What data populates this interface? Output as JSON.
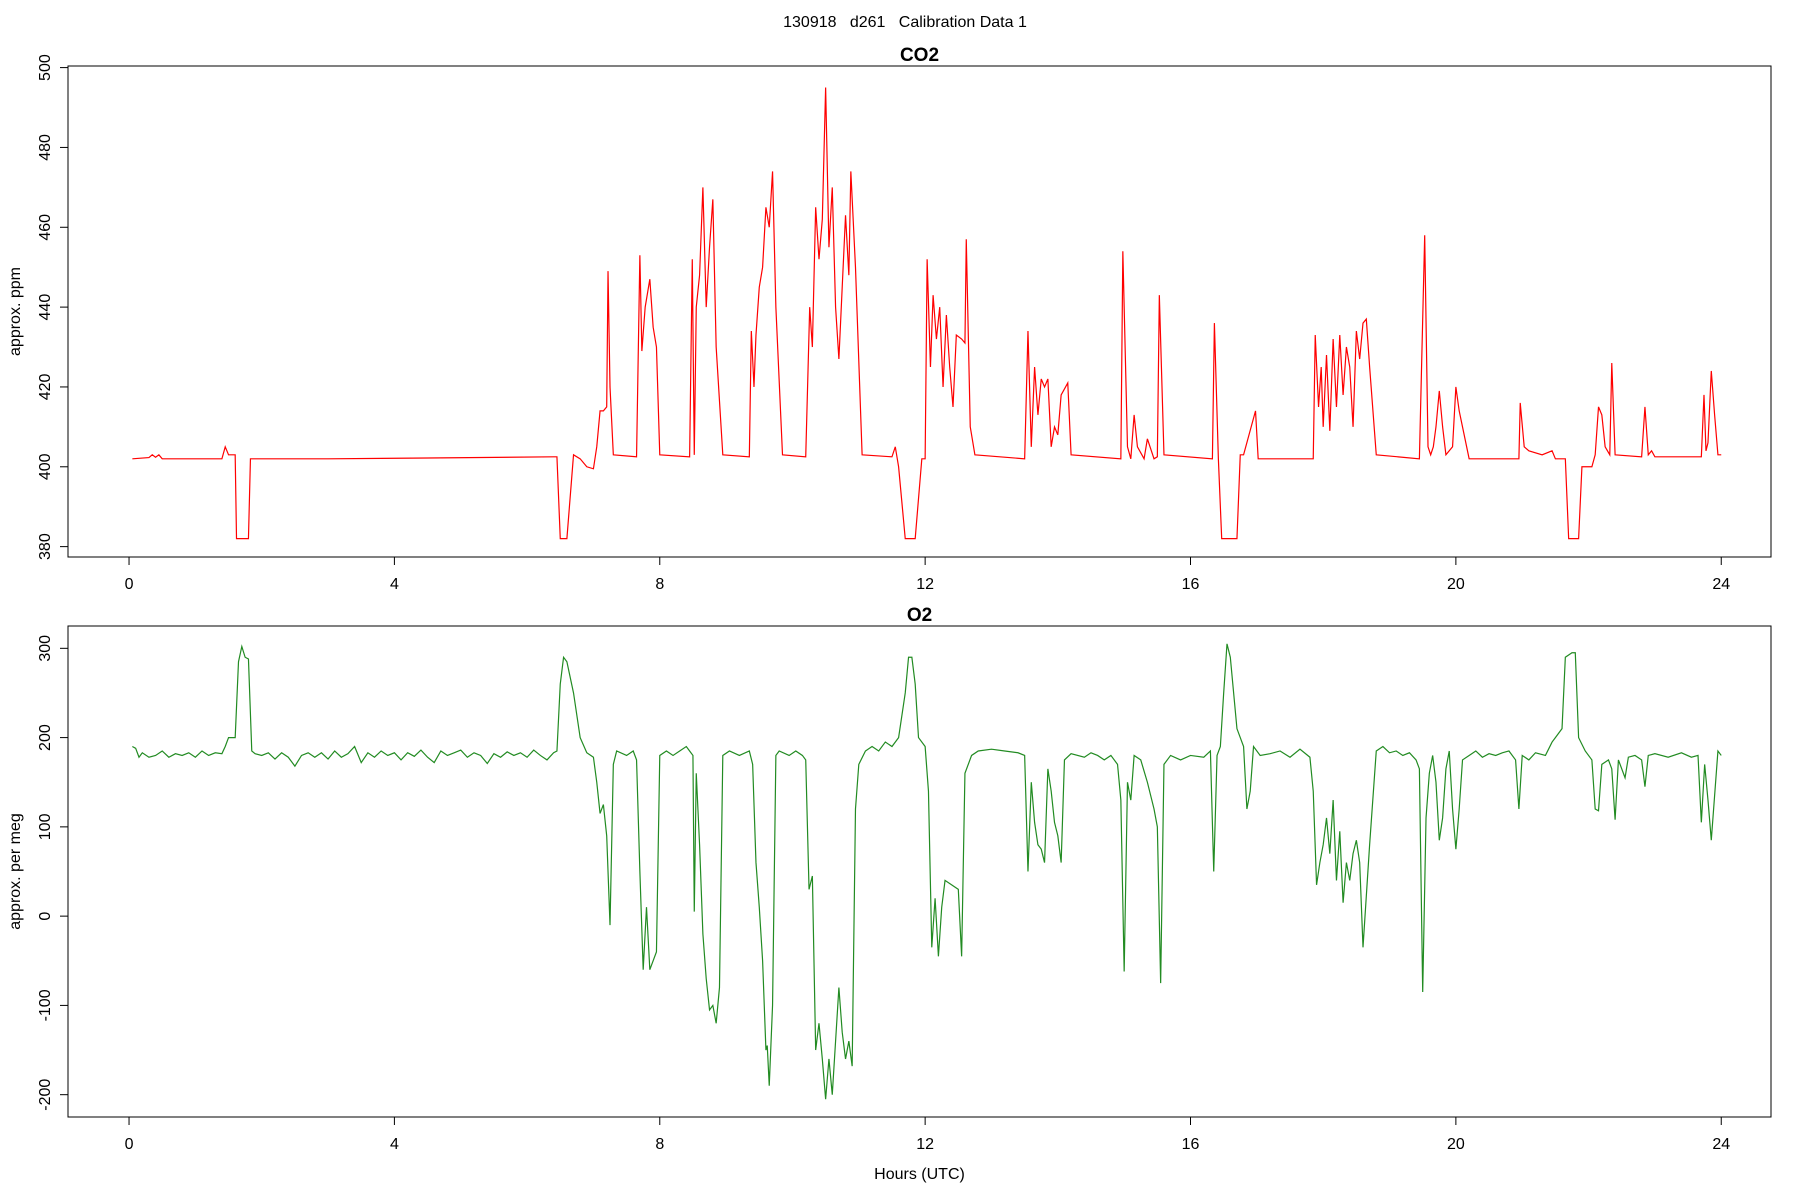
{
  "title": "130918   d261   Calibration Data 1",
  "chart_data": [
    {
      "type": "line",
      "title": "CO2",
      "y_label": "approx. ppm",
      "x": [
        0.05,
        0.3,
        0.35,
        0.4,
        0.45,
        0.5,
        1.4,
        1.45,
        1.5,
        1.6,
        1.62,
        1.8,
        1.83,
        3.0,
        4.5,
        6.4,
        6.45,
        6.5,
        6.6,
        6.7,
        6.8,
        6.9,
        7.0,
        7.05,
        7.1,
        7.15,
        7.2,
        7.22,
        7.25,
        7.3,
        7.65,
        7.7,
        7.73,
        7.78,
        7.85,
        7.9,
        7.95,
        8.0,
        8.45,
        8.49,
        8.52,
        8.55,
        8.6,
        8.65,
        8.7,
        8.75,
        8.8,
        8.85,
        8.95,
        9.35,
        9.38,
        9.42,
        9.45,
        9.5,
        9.55,
        9.6,
        9.65,
        9.7,
        9.75,
        9.85,
        10.2,
        10.26,
        10.3,
        10.35,
        10.4,
        10.45,
        10.5,
        10.55,
        10.6,
        10.65,
        10.7,
        10.75,
        10.8,
        10.85,
        10.88,
        10.95,
        11.05,
        11.5,
        11.55,
        11.6,
        11.7,
        11.85,
        11.95,
        12.0,
        12.03,
        12.08,
        12.12,
        12.17,
        12.22,
        12.27,
        12.32,
        12.37,
        12.42,
        12.47,
        12.55,
        12.6,
        12.62,
        12.68,
        12.75,
        13.5,
        13.55,
        13.6,
        13.65,
        13.7,
        13.75,
        13.8,
        13.85,
        13.9,
        13.95,
        14.0,
        14.05,
        14.15,
        14.2,
        14.95,
        14.98,
        15.05,
        15.1,
        15.15,
        15.2,
        15.3,
        15.35,
        15.45,
        15.5,
        15.53,
        15.6,
        16.33,
        16.36,
        16.42,
        16.47,
        16.7,
        16.75,
        16.8,
        16.98,
        17.02,
        17.85,
        17.88,
        17.93,
        17.97,
        18.0,
        18.05,
        18.1,
        18.15,
        18.2,
        18.25,
        18.3,
        18.35,
        18.4,
        18.45,
        18.5,
        18.55,
        18.6,
        18.65,
        18.7,
        18.8,
        19.45,
        19.53,
        19.58,
        19.62,
        19.66,
        19.7,
        19.75,
        19.8,
        19.85,
        19.95,
        20.0,
        20.05,
        20.2,
        20.95,
        20.97,
        21.03,
        21.1,
        21.3,
        21.45,
        21.5,
        21.65,
        21.7,
        21.85,
        21.9,
        22.05,
        22.1,
        22.15,
        22.2,
        22.25,
        22.32,
        22.35,
        22.4,
        22.8,
        22.85,
        22.9,
        22.95,
        23.0,
        23.7,
        23.74,
        23.77,
        23.8,
        23.85,
        23.9,
        23.95,
        24.0
      ],
      "series": [
        {
          "color": "#ff0000",
          "values": [
            402,
            402.3,
            403,
            402.4,
            403,
            402,
            402,
            405,
            403,
            403,
            382,
            382,
            402,
            402,
            402.2,
            402.5,
            402.5,
            382,
            382,
            403,
            402,
            400,
            399.5,
            405,
            414,
            414,
            415,
            449,
            420,
            403,
            402.5,
            453,
            429,
            440,
            447,
            435,
            430,
            403,
            402.5,
            452,
            403,
            440,
            448,
            470,
            440,
            455,
            467,
            430,
            403,
            402.5,
            434,
            420,
            433,
            445,
            450,
            465,
            460,
            474,
            440,
            403,
            402.5,
            440,
            430,
            465,
            452,
            462,
            495,
            455,
            470,
            440,
            427,
            445,
            463,
            448,
            474,
            450,
            403,
            402.5,
            405,
            400,
            382,
            382,
            402,
            402,
            452,
            425,
            443,
            432,
            440,
            420,
            438,
            425,
            415,
            433,
            432,
            431,
            457,
            410,
            403,
            402,
            434,
            405,
            425,
            413,
            422,
            420,
            422,
            405,
            410,
            408,
            418,
            421,
            403,
            402,
            454,
            405,
            402,
            413,
            405,
            402,
            407,
            402,
            402.5,
            443,
            403,
            402,
            436,
            402,
            382,
            382,
            403,
            403,
            414,
            402,
            402,
            433,
            415,
            425,
            410,
            428,
            409,
            432,
            415,
            433,
            418,
            430,
            425,
            410,
            434,
            427,
            436,
            437,
            425,
            403,
            402,
            458,
            405,
            403,
            405,
            410,
            419,
            410,
            403,
            405,
            420,
            414,
            402,
            402,
            416,
            405,
            404,
            403,
            404,
            402,
            402,
            382,
            382,
            400,
            400,
            403,
            415,
            413,
            405,
            403,
            426,
            403,
            402.5,
            415,
            403,
            404,
            402.5,
            402.5,
            418,
            404,
            406,
            424,
            413,
            403,
            403
          ]
        }
      ],
      "xlim": [
        -0.92,
        24.75
      ],
      "ylim": [
        377.4,
        500.4
      ],
      "xticks": [
        0,
        4,
        8,
        12,
        16,
        20,
        24
      ],
      "yticks": [
        380,
        400,
        420,
        440,
        460,
        480,
        500
      ]
    },
    {
      "type": "line",
      "title": "O2",
      "y_label": "approx. per meg",
      "x_label": "Hours (UTC)",
      "x": [
        0.05,
        0.1,
        0.15,
        0.2,
        0.3,
        0.4,
        0.5,
        0.6,
        0.7,
        0.8,
        0.9,
        1.0,
        1.1,
        1.2,
        1.3,
        1.4,
        1.45,
        1.5,
        1.6,
        1.65,
        1.7,
        1.75,
        1.8,
        1.85,
        1.9,
        2.0,
        2.1,
        2.2,
        2.3,
        2.4,
        2.5,
        2.6,
        2.7,
        2.8,
        2.9,
        3.0,
        3.1,
        3.2,
        3.3,
        3.4,
        3.5,
        3.6,
        3.7,
        3.8,
        3.9,
        4.0,
        4.1,
        4.2,
        4.3,
        4.4,
        4.5,
        4.6,
        4.7,
        4.8,
        4.9,
        5.0,
        5.1,
        5.2,
        5.3,
        5.4,
        5.5,
        5.6,
        5.7,
        5.8,
        5.9,
        6.0,
        6.1,
        6.2,
        6.3,
        6.4,
        6.45,
        6.5,
        6.55,
        6.6,
        6.7,
        6.8,
        6.9,
        7.0,
        7.05,
        7.1,
        7.15,
        7.2,
        7.25,
        7.3,
        7.35,
        7.5,
        7.6,
        7.65,
        7.7,
        7.75,
        7.8,
        7.85,
        7.95,
        8.0,
        8.1,
        8.2,
        8.3,
        8.4,
        8.45,
        8.5,
        8.52,
        8.55,
        8.6,
        8.65,
        8.7,
        8.75,
        8.8,
        8.85,
        8.9,
        8.95,
        9.05,
        9.2,
        9.35,
        9.4,
        9.45,
        9.5,
        9.55,
        9.6,
        9.62,
        9.65,
        9.7,
        9.75,
        9.8,
        9.95,
        10.05,
        10.15,
        10.2,
        10.25,
        10.3,
        10.35,
        10.4,
        10.45,
        10.5,
        10.55,
        10.6,
        10.65,
        10.7,
        10.75,
        10.8,
        10.85,
        10.9,
        10.95,
        11.0,
        11.1,
        11.2,
        11.3,
        11.4,
        11.5,
        11.6,
        11.7,
        11.75,
        11.8,
        11.85,
        11.9,
        12.0,
        12.05,
        12.1,
        12.15,
        12.2,
        12.25,
        12.3,
        12.4,
        12.5,
        12.55,
        12.6,
        12.7,
        12.8,
        13.0,
        13.2,
        13.4,
        13.5,
        13.55,
        13.6,
        13.65,
        13.7,
        13.75,
        13.8,
        13.85,
        13.9,
        13.95,
        14.0,
        14.05,
        14.1,
        14.2,
        14.4,
        14.5,
        14.6,
        14.7,
        14.8,
        14.9,
        14.95,
        15.0,
        15.05,
        15.1,
        15.15,
        15.25,
        15.35,
        15.45,
        15.5,
        15.55,
        15.6,
        15.7,
        15.85,
        16.0,
        16.2,
        16.3,
        16.35,
        16.4,
        16.45,
        16.5,
        16.55,
        16.6,
        16.7,
        16.8,
        16.85,
        16.9,
        16.95,
        17.05,
        17.2,
        17.35,
        17.5,
        17.65,
        17.8,
        17.85,
        17.9,
        17.95,
        18.0,
        18.05,
        18.1,
        18.15,
        18.2,
        18.25,
        18.3,
        18.35,
        18.4,
        18.45,
        18.5,
        18.55,
        18.6,
        18.7,
        18.8,
        18.9,
        19.0,
        19.1,
        19.2,
        19.3,
        19.4,
        19.45,
        19.5,
        19.55,
        19.6,
        19.65,
        19.7,
        19.75,
        19.8,
        19.85,
        19.9,
        19.95,
        20.0,
        20.05,
        20.1,
        20.2,
        20.3,
        20.4,
        20.5,
        20.6,
        20.7,
        20.8,
        20.9,
        20.95,
        21.0,
        21.1,
        21.2,
        21.35,
        21.45,
        21.5,
        21.6,
        21.65,
        21.75,
        21.8,
        21.85,
        21.95,
        22.05,
        22.1,
        22.15,
        22.2,
        22.3,
        22.35,
        22.4,
        22.45,
        22.55,
        22.6,
        22.7,
        22.8,
        22.85,
        22.9,
        23.0,
        23.2,
        23.4,
        23.55,
        23.65,
        23.7,
        23.75,
        23.8,
        23.85,
        23.95,
        24.0
      ],
      "series": [
        {
          "color": "#228b22",
          "values": [
            190,
            188,
            178,
            183,
            178,
            180,
            185,
            178,
            182,
            180,
            183,
            178,
            185,
            180,
            183,
            182,
            190,
            200,
            200,
            285,
            302,
            290,
            288,
            185,
            182,
            180,
            183,
            176,
            183,
            178,
            168,
            180,
            183,
            178,
            183,
            176,
            185,
            178,
            182,
            190,
            172,
            183,
            178,
            185,
            180,
            183,
            175,
            183,
            179,
            186,
            178,
            172,
            185,
            180,
            183,
            186,
            178,
            183,
            180,
            171,
            182,
            178,
            184,
            180,
            183,
            178,
            186,
            180,
            175,
            183,
            185,
            260,
            290,
            285,
            250,
            200,
            183,
            178,
            150,
            115,
            125,
            90,
            -10,
            170,
            185,
            180,
            185,
            175,
            50,
            -60,
            10,
            -60,
            -40,
            180,
            185,
            180,
            185,
            190,
            185,
            180,
            5,
            160,
            80,
            -20,
            -70,
            -105,
            -100,
            -120,
            -80,
            180,
            185,
            180,
            185,
            170,
            60,
            10,
            -50,
            -150,
            -145,
            -190,
            -100,
            180,
            185,
            180,
            185,
            180,
            175,
            30,
            45,
            -150,
            -120,
            -160,
            -205,
            -160,
            -200,
            -140,
            -80,
            -130,
            -160,
            -140,
            -168,
            120,
            170,
            185,
            190,
            185,
            195,
            190,
            200,
            250,
            290,
            290,
            260,
            200,
            190,
            140,
            -35,
            20,
            -45,
            10,
            40,
            35,
            30,
            -45,
            160,
            180,
            185,
            187,
            185,
            183,
            180,
            50,
            150,
            105,
            80,
            75,
            60,
            165,
            140,
            105,
            90,
            60,
            175,
            182,
            178,
            183,
            180,
            175,
            180,
            170,
            130,
            -62,
            150,
            130,
            180,
            175,
            150,
            120,
            100,
            -75,
            170,
            180,
            175,
            180,
            178,
            185,
            50,
            180,
            190,
            250,
            305,
            290,
            210,
            190,
            120,
            140,
            190,
            180,
            182,
            185,
            178,
            187,
            178,
            140,
            35,
            60,
            80,
            110,
            70,
            130,
            40,
            95,
            15,
            60,
            40,
            70,
            85,
            60,
            -35,
            80,
            185,
            190,
            183,
            185,
            180,
            183,
            175,
            165,
            -85,
            110,
            160,
            180,
            150,
            85,
            110,
            165,
            185,
            120,
            75,
            120,
            175,
            180,
            185,
            178,
            182,
            180,
            183,
            185,
            175,
            120,
            180,
            175,
            183,
            180,
            195,
            200,
            210,
            290,
            295,
            295,
            200,
            185,
            175,
            120,
            118,
            170,
            175,
            165,
            108,
            175,
            155,
            178,
            180,
            175,
            145,
            180,
            182,
            178,
            183,
            178,
            180,
            105,
            170,
            130,
            85,
            185,
            180
          ]
        }
      ],
      "xlim": [
        -0.92,
        24.75
      ],
      "ylim": [
        -225,
        325
      ],
      "xticks": [
        0,
        4,
        8,
        12,
        16,
        20,
        24
      ],
      "yticks": [
        -200,
        -100,
        0,
        100,
        200,
        300
      ]
    }
  ]
}
